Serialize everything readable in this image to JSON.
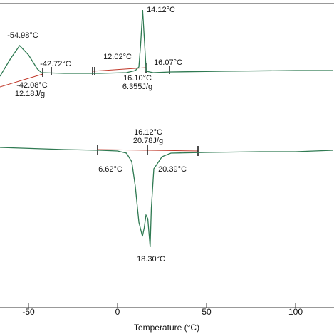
{
  "chart_data": {
    "type": "line",
    "xlabel": "Temperature (°C)",
    "xlim": [
      -66,
      121.6
    ],
    "xticks": [
      -50,
      0,
      50,
      100
    ],
    "ylim": [
      0,
      430
    ],
    "series": [
      {
        "color": "#2f7a52",
        "x": [
          -66,
          -60,
          -54.98,
          -50,
          -45,
          -42.72,
          -30,
          -10,
          5,
          10,
          12.02,
          13,
          14.12,
          15,
          16.1,
          20,
          30,
          60,
          100,
          121
        ],
        "values": [
          325,
          350,
          368,
          355,
          335,
          330,
          329,
          329,
          330,
          333,
          338,
          370,
          418,
          380,
          332,
          330,
          331,
          332,
          333,
          333
        ]
      },
      {
        "color": "#2f7a52",
        "x": [
          -66,
          -30,
          -10,
          0,
          5,
          8,
          10,
          12,
          14,
          15,
          16,
          17,
          18.3,
          19,
          20.39,
          25,
          30,
          50,
          80,
          95,
          100,
          121
        ],
        "values": [
          225,
          222,
          221,
          220,
          217,
          205,
          170,
          120,
          100,
          112,
          130,
          125,
          85,
          140,
          195,
          212,
          217,
          218,
          219,
          219,
          219,
          221
        ]
      }
    ],
    "annotations": [
      "-54.98°C",
      "-42.72°C",
      "-42.08°C",
      "12.18J/g",
      "14.12°C",
      "12.02°C",
      "16.07°C",
      "16.10°C",
      "6.355J/g",
      "16.12°C",
      "20.78J/g",
      "6.62°C",
      "20.39°C",
      "18.30°C"
    ]
  }
}
